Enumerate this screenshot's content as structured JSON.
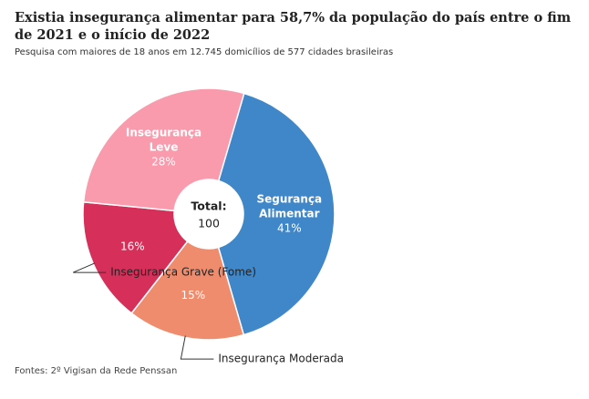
{
  "title": "Existia insegurança alimentar para 58,7% da população do país entre o fim de 2021 e o início de 2022",
  "subtitle": "Pesquisa com maiores de 18 anos em 12.745 domicílios de 577 cidades brasileiras",
  "source": "Fontes: 2º Vigisan da Rede Penssan",
  "chart_data": {
    "type": "pie",
    "variant": "donut",
    "center_label": "Total:",
    "center_value": "100",
    "series": [
      {
        "name": "Segurança Alimentar",
        "label_lines": [
          "Segurança",
          "Alimentar"
        ],
        "value": 41,
        "value_label": "41%",
        "color": "#3f87c8",
        "label_inside": true
      },
      {
        "name": "Insegurança Moderada",
        "label_lines": [
          "Insegurança Moderada"
        ],
        "value": 15,
        "value_label": "15%",
        "color": "#f08c6e",
        "label_inside": false
      },
      {
        "name": "Insegurança Grave (Fome)",
        "label_lines": [
          "Insegurança Grave (Fome)"
        ],
        "value": 16,
        "value_label": "16%",
        "color": "#d6305a",
        "label_inside": false
      },
      {
        "name": "Insegurança Leve",
        "label_lines": [
          "Insegurança",
          "Leve"
        ],
        "value": 28,
        "value_label": "28%",
        "color": "#f99bac",
        "label_inside": true
      }
    ]
  }
}
